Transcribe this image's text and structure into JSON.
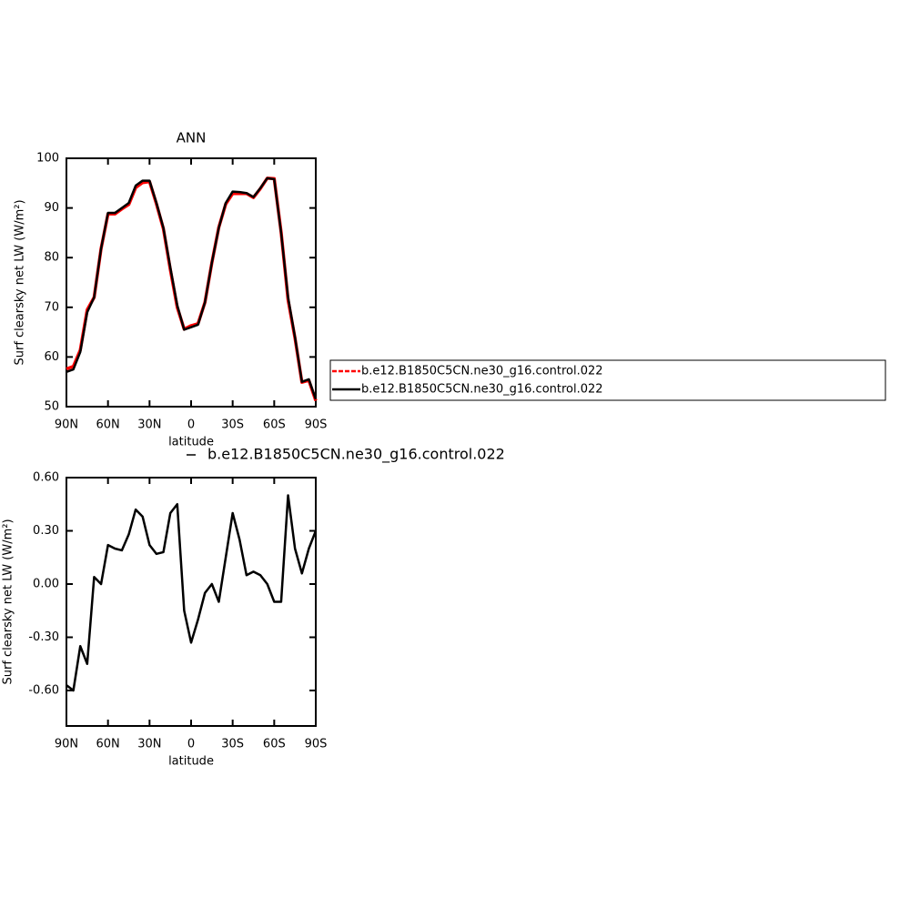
{
  "chart_data": [
    {
      "type": "line",
      "title": "ANN",
      "x_label": "latitude",
      "y_label": "Surf clearsky net LW (W/m²)",
      "x": [
        90,
        85,
        80,
        75,
        70,
        65,
        60,
        55,
        50,
        45,
        40,
        35,
        30,
        25,
        20,
        15,
        10,
        5,
        0,
        -5,
        -10,
        -15,
        -20,
        -25,
        -30,
        -35,
        -40,
        -45,
        -50,
        -55,
        -60,
        -65,
        -70,
        -75,
        -80,
        -85,
        -90
      ],
      "xlim": [
        90,
        -90
      ],
      "xticks": [
        {
          "value": 90,
          "label": "90N"
        },
        {
          "value": 60,
          "label": "60N"
        },
        {
          "value": 30,
          "label": "30N"
        },
        0,
        {
          "value": -30,
          "label": "30S"
        },
        {
          "value": -60,
          "label": "60S"
        },
        {
          "value": -90,
          "label": "90S"
        }
      ],
      "ylim": [
        50,
        100
      ],
      "yticks": [
        50,
        60,
        70,
        80,
        90,
        100
      ],
      "legend": "right",
      "series": [
        {
          "name": "b.e12.B1850C5CN.ne30_g16.control.022",
          "color": "#ff0000",
          "dash": true,
          "values": [
            57.6,
            58.1,
            61.4,
            69.5,
            72.0,
            81.8,
            88.8,
            88.8,
            89.8,
            90.7,
            94.1,
            95.1,
            95.3,
            90.8,
            85.8,
            77.6,
            70.0,
            65.6,
            66.3,
            66.7,
            71.0,
            79.0,
            86.1,
            90.8,
            92.9,
            92.9,
            92.9,
            92.1,
            93.9,
            96.0,
            95.9,
            85.1,
            71.5,
            63.8,
            54.9,
            55.3,
            51.2
          ]
        },
        {
          "name": "b.e12.B1850C5CN.ne30_g16.control.022",
          "color": "#000000",
          "dash": false,
          "values": [
            57.0,
            57.5,
            61.0,
            69.0,
            72.0,
            81.8,
            89.0,
            89.0,
            90.0,
            91.0,
            94.5,
            95.5,
            95.5,
            91.0,
            86.0,
            78.0,
            70.4,
            65.5,
            66.0,
            66.5,
            71.0,
            79.0,
            86.0,
            91.0,
            93.3,
            93.2,
            93.0,
            92.2,
            94.0,
            96.0,
            95.8,
            85.0,
            72.0,
            64.0,
            55.0,
            55.5,
            51.5
          ]
        }
      ]
    },
    {
      "type": "line",
      "x_label": "latitude",
      "y_label": "Surf clearsky net LW (W/m²)",
      "x": [
        90,
        85,
        80,
        75,
        70,
        65,
        60,
        55,
        50,
        45,
        40,
        35,
        30,
        25,
        20,
        15,
        10,
        5,
        0,
        -5,
        -10,
        -15,
        -20,
        -25,
        -30,
        -35,
        -40,
        -45,
        -50,
        -55,
        -60,
        -65,
        -70,
        -75,
        -80,
        -85,
        -90
      ],
      "xlim": [
        90,
        -90
      ],
      "xticks": [
        {
          "value": 90,
          "label": "90N"
        },
        {
          "value": 60,
          "label": "60N"
        },
        {
          "value": 30,
          "label": "30N"
        },
        0,
        {
          "value": -30,
          "label": "30S"
        },
        {
          "value": -60,
          "label": "60S"
        },
        {
          "value": -90,
          "label": "90S"
        }
      ],
      "ylim": [
        -0.8,
        0.6
      ],
      "yticks": [
        {
          "value": -0.6,
          "label": "-0.60"
        },
        {
          "value": -0.3,
          "label": "-0.30"
        },
        {
          "value": 0,
          "label": "0.00"
        },
        {
          "value": 0.3,
          "label": "0.30"
        },
        {
          "value": 0.6,
          "label": "0.60"
        }
      ],
      "series": [
        {
          "name": "b.e12.B1850C5CN.ne30_g16.control.022",
          "color": "#000000",
          "values": [
            -0.57,
            -0.6,
            -0.35,
            -0.45,
            0.04,
            0.0,
            0.22,
            0.2,
            0.19,
            0.28,
            0.42,
            0.38,
            0.22,
            0.17,
            0.18,
            0.4,
            0.45,
            -0.15,
            -0.33,
            -0.2,
            -0.05,
            0.0,
            -0.1,
            0.15,
            0.4,
            0.25,
            0.05,
            0.07,
            0.05,
            0.0,
            -0.1,
            -0.1,
            0.5,
            0.2,
            0.06,
            0.2,
            0.3
          ]
        }
      ]
    }
  ]
}
